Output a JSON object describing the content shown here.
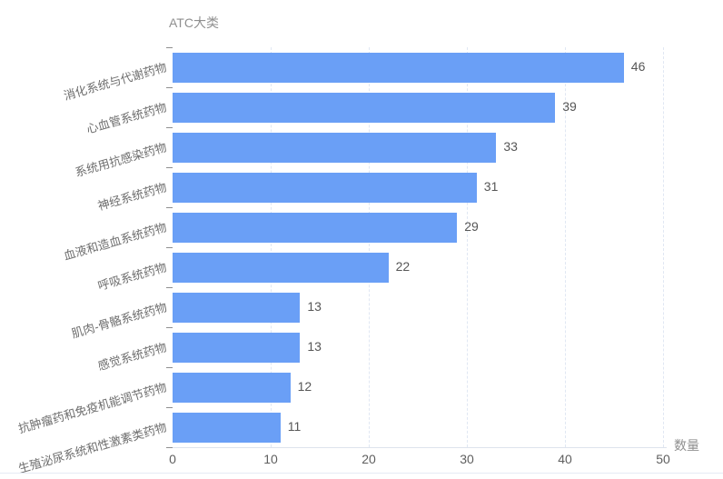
{
  "chart_data": {
    "type": "bar",
    "orientation": "horizontal",
    "title": "ATC大类",
    "xlabel": "数量",
    "ylabel": "ATC大类",
    "categories": [
      "消化系统与代谢药物",
      "心血管系统药物",
      "系统用抗感染药物",
      "神经系统药物",
      "血液和造血系统药物",
      "呼吸系统药物",
      "肌肉-骨骼系统药物",
      "感觉系统药物",
      "抗肿瘤药和免疫机能调节药物",
      "生殖泌尿系统和性激素类药物"
    ],
    "values": [
      46,
      39,
      33,
      31,
      29,
      22,
      13,
      13,
      12,
      11
    ],
    "xlim": [
      0,
      50
    ],
    "xticks": [
      0,
      10,
      20,
      30,
      40,
      50
    ],
    "grid": "vertical-dashed",
    "legend": "none",
    "sort": "descending",
    "colors": {
      "bar": "#6a9ff6",
      "value_label": "#565656",
      "x_tick_label": "#5f5f5f",
      "category_label": "#6e6e6e",
      "title": "#8f8f8f",
      "axis_name": "#8f8f8f",
      "grid_line": "#e0e7f3",
      "axis_line": "#dde3ed",
      "y_tick": "#8f8f8f",
      "divider": "#e5eaf4"
    }
  }
}
